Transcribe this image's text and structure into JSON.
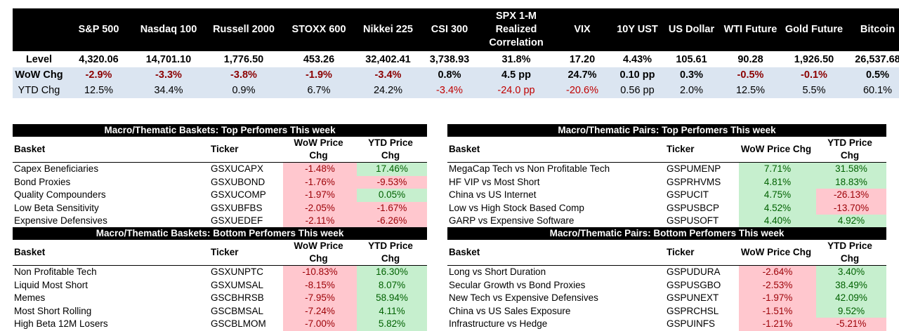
{
  "summary": {
    "columns": [
      "",
      "S&P 500",
      "Nasdaq 100",
      "Russell 2000",
      "STOXX 600",
      "Nikkei 225",
      "CSI 300",
      "SPX 1-M Realized Correlation",
      "VIX",
      "10Y UST",
      "US Dollar",
      "WTI Future",
      "Gold Future",
      "Bitcoin"
    ],
    "spx_corr_lines": [
      "SPX 1-M",
      "Realized",
      "Correlation"
    ],
    "rows": [
      {
        "label": "Level",
        "values": [
          "4,320.06",
          "14,701.10",
          "1,776.50",
          "453.26",
          "32,402.41",
          "3,738.93",
          "31.8%",
          "17.20",
          "4.43%",
          "105.61",
          "90.28",
          "1,926.50",
          "26,537.68"
        ]
      },
      {
        "label": "WoW Chg",
        "values": [
          "-2.9%",
          "-3.3%",
          "-3.8%",
          "-1.9%",
          "-3.4%",
          "0.8%",
          "4.5 pp",
          "24.7%",
          "0.10 pp",
          "0.3%",
          "-0.5%",
          "-0.1%",
          "0.5%"
        ]
      },
      {
        "label": "YTD Chg",
        "values": [
          "12.5%",
          "34.4%",
          "0.9%",
          "6.7%",
          "24.2%",
          "-3.4%",
          "-24.0 pp",
          "-20.6%",
          "0.56 pp",
          "2.0%",
          "12.5%",
          "5.5%",
          "60.1%"
        ]
      }
    ]
  },
  "tables": [
    {
      "title": "Macro/Thematic Baskets: Top Perfomers This week",
      "headers": [
        "Basket",
        "Ticker",
        "WoW Price Chg",
        "YTD Price Chg"
      ],
      "rows": [
        [
          "Capex Beneficiaries",
          "GSXUCAPX",
          "-1.48%",
          "17.46%"
        ],
        [
          "Bond Proxies",
          "GSXUBOND",
          "-1.76%",
          "-9.53%"
        ],
        [
          "Quality Compounders",
          "GSXUCOMP",
          "-1.97%",
          "0.05%"
        ],
        [
          "Low Beta Sensitivity",
          "GSXUBFBS",
          "-2.05%",
          "-1.67%"
        ],
        [
          "Expensive Defensives",
          "GSXUEDEF",
          "-2.11%",
          "-6.26%"
        ]
      ]
    },
    {
      "title": "Macro/Thematic Pairs: Top Perfomers This week",
      "headers": [
        "Basket",
        "Ticker",
        "WoW Price Chg",
        "YTD Price Chg"
      ],
      "rows": [
        [
          "MegaCap Tech vs Non Profitable Tech",
          "GSPUMENP",
          "7.71%",
          "31.58%"
        ],
        [
          "HF VIP vs Most Short",
          "GSPRHVMS",
          "4.81%",
          "18.83%"
        ],
        [
          "China vs US Internet",
          "GSPUCIT",
          "4.75%",
          "-26.13%"
        ],
        [
          "Low vs High Stock Based Comp",
          "GSPUSBCP",
          "4.52%",
          "-13.70%"
        ],
        [
          "GARP vs Expensive Software",
          "GSPUSOFT",
          "4.40%",
          "4.92%"
        ]
      ]
    },
    {
      "title": "Macro/Thematic Baskets: Bottom Perfomers This week",
      "headers": [
        "Basket",
        "Ticker",
        "WoW Price Chg",
        "YTD Price Chg"
      ],
      "rows": [
        [
          "Non Profitable Tech",
          "GSXUNPTC",
          "-10.83%",
          "16.30%"
        ],
        [
          "Liquid Most Short",
          "GSXUMSAL",
          "-8.15%",
          "8.07%"
        ],
        [
          "Memes",
          "GSCBHRSB",
          "-7.95%",
          "58.94%"
        ],
        [
          "Most Short Rolling",
          "GSCBMSAL",
          "-7.24%",
          "4.11%"
        ],
        [
          "High Beta 12M Losers",
          "GSCBLMOM",
          "-7.00%",
          "5.82%"
        ]
      ]
    },
    {
      "title": "Macro/Thematic Pairs: Bottom Perfomers This week",
      "headers": [
        "Basket",
        "Ticker",
        "WoW Price Chg",
        "YTD Price Chg"
      ],
      "rows": [
        [
          "Long vs Short Duration",
          "GSPUDURA",
          "-2.64%",
          "3.40%"
        ],
        [
          "Secular Growth vs Bond Proxies",
          "GSPUSGBO",
          "-2.53%",
          "38.49%"
        ],
        [
          "New Tech vs Expensive Defensives",
          "GSPUNEXT",
          "-1.97%",
          "42.09%"
        ],
        [
          "China vs US Sales Exposure",
          "GSPRCHSL",
          "-1.51%",
          "9.52%"
        ],
        [
          "Infrastructure vs Hedge",
          "GSPUINFS",
          "-1.21%",
          "-5.21%"
        ]
      ]
    }
  ]
}
